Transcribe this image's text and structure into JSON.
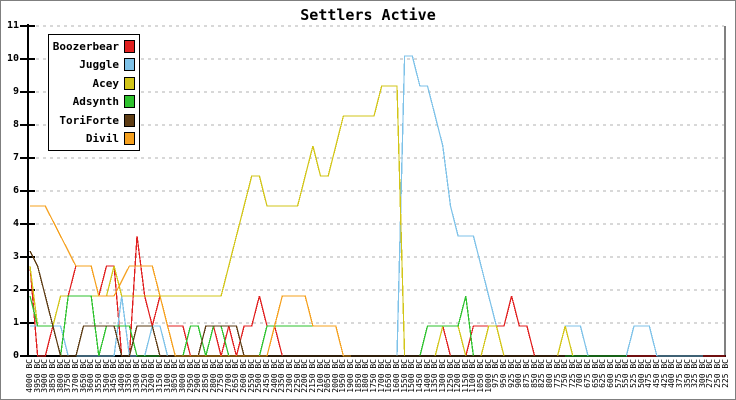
{
  "chart_data": {
    "type": "line",
    "title": "Settlers Active",
    "frame_color": "#7f7f7f",
    "grid": "horizontal dashed",
    "gridline_color": "#b2b2b2",
    "legend_position": "top-left",
    "ylim": [
      0,
      11
    ],
    "y_tick_labels": [
      "11",
      "10",
      "9",
      "8",
      "7",
      "6",
      "4",
      "3",
      "2",
      "1",
      "0"
    ],
    "x_labels": [
      "4000 BC",
      "3950 BC",
      "3900 BC",
      "3850 BC",
      "3800 BC",
      "3750 BC",
      "3700 BC",
      "3650 BC",
      "3600 BC",
      "3550 BC",
      "3500 BC",
      "3450 BC",
      "3400 BC",
      "3350 BC",
      "3300 BC",
      "3250 BC",
      "3200 BC",
      "3150 BC",
      "3100 BC",
      "3050 BC",
      "3000 BC",
      "2950 BC",
      "2900 BC",
      "2850 BC",
      "2800 BC",
      "2750 BC",
      "2700 BC",
      "2650 BC",
      "2600 BC",
      "2550 BC",
      "2500 BC",
      "2450 BC",
      "2400 BC",
      "2350 BC",
      "2300 BC",
      "2250 BC",
      "2200 BC",
      "2150 BC",
      "2100 BC",
      "2050 BC",
      "2000 BC",
      "1950 BC",
      "1900 BC",
      "1850 BC",
      "1800 BC",
      "1750 BC",
      "1700 BC",
      "1650 BC",
      "1600 BC",
      "1550 BC",
      "1500 BC",
      "1450 BC",
      "1400 BC",
      "1350 BC",
      "1300 BC",
      "1250 BC",
      "1200 BC",
      "1150 BC",
      "1100 BC",
      "1050 BC",
      "1000 BC",
      "975 BC",
      "950 BC",
      "925 BC",
      "900 BC",
      "875 BC",
      "850 BC",
      "825 BC",
      "800 BC",
      "775 BC",
      "750 BC",
      "725 BC",
      "700 BC",
      "675 BC",
      "650 BC",
      "625 BC",
      "600 BC",
      "575 BC",
      "550 BC",
      "525 BC",
      "500 BC",
      "475 BC",
      "450 BC",
      "425 BC",
      "400 BC",
      "375 BC",
      "350 BC",
      "325 BC",
      "300 BC",
      "275 BC",
      "250 BC",
      "225 BC"
    ],
    "series": [
      {
        "name": "Boozerbear",
        "color": "#e02020",
        "values": [
          3,
          0,
          0,
          1,
          2,
          2,
          3,
          3,
          3,
          2,
          3,
          3,
          0,
          0,
          4,
          2,
          1,
          2,
          1,
          1,
          1,
          0,
          0,
          0,
          1,
          0,
          1,
          0,
          1,
          1,
          2,
          1,
          1,
          0,
          0,
          0,
          0,
          0,
          0,
          0,
          0,
          0,
          0,
          0,
          0,
          0,
          0,
          0,
          0,
          0,
          0,
          0,
          0,
          0,
          1,
          0,
          0,
          0,
          1,
          1,
          1,
          1,
          1,
          2,
          1,
          1,
          0,
          0,
          0,
          0,
          0,
          0,
          0,
          0,
          0,
          0,
          0,
          0,
          0,
          0,
          0,
          0,
          0,
          0,
          0,
          0,
          0,
          0,
          0,
          0,
          0,
          0
        ]
      },
      {
        "name": "Juggle",
        "color": "#7ec2e8",
        "values": [
          1,
          1,
          1,
          1,
          1,
          0,
          0,
          0,
          0,
          0,
          0,
          0,
          2,
          0,
          0,
          0,
          1,
          1,
          0,
          0,
          0,
          0,
          0,
          0,
          0,
          0,
          0,
          0,
          0,
          0,
          0,
          0,
          0,
          0,
          0,
          0,
          0,
          0,
          0,
          0,
          0,
          0,
          0,
          0,
          0,
          0,
          0,
          0,
          0,
          10,
          10,
          9,
          9,
          8,
          7,
          5,
          4,
          4,
          4,
          3,
          2,
          1,
          0,
          0,
          0,
          0,
          0,
          0,
          0,
          0,
          1,
          1,
          1,
          0,
          0,
          0,
          0,
          0,
          0,
          1,
          1,
          1,
          0,
          0,
          0,
          0,
          0,
          0,
          0
        ]
      },
      {
        "name": "Acey",
        "color": "#d2c518",
        "values": [
          3,
          1,
          1,
          1,
          2,
          2,
          2,
          2,
          2,
          2,
          2,
          3,
          2,
          2,
          2,
          2,
          2,
          2,
          2,
          2,
          2,
          2,
          2,
          2,
          2,
          2,
          3,
          4,
          5,
          6,
          6,
          5,
          5,
          5,
          5,
          5,
          6,
          7,
          6,
          6,
          7,
          8,
          8,
          8,
          8,
          8,
          9,
          9,
          9,
          0,
          0,
          0,
          0,
          0,
          1,
          1,
          1,
          0,
          0,
          0,
          1,
          1,
          0,
          0,
          0,
          0,
          0,
          0,
          0,
          0,
          1,
          0
        ]
      },
      {
        "name": "Adsynth",
        "color": "#2ec22e",
        "values": [
          2,
          1,
          1,
          1,
          0,
          2,
          2,
          2,
          2,
          0,
          1,
          1,
          1,
          1,
          0,
          0,
          0,
          0,
          0,
          0,
          0,
          1,
          1,
          0,
          1,
          1,
          0,
          0,
          0,
          0,
          0,
          1,
          1,
          1,
          1,
          1,
          1,
          1,
          1,
          1,
          1,
          0,
          0,
          0,
          0,
          0,
          0,
          0,
          0,
          0,
          0,
          0,
          1,
          1,
          1,
          1,
          1,
          2,
          0,
          0,
          0,
          0,
          0,
          0,
          0,
          0,
          0,
          0,
          0,
          0,
          0,
          0,
          0,
          0,
          0,
          0,
          0,
          0,
          0
        ]
      },
      {
        "name": "ToriForte",
        "color": "#5e3c14",
        "values": [
          3.5,
          3,
          2,
          1,
          0,
          0,
          0,
          1,
          1,
          1,
          1,
          1,
          0,
          0,
          1,
          1,
          1,
          0,
          0,
          0,
          0,
          0,
          0,
          1,
          1,
          1,
          1,
          1,
          0,
          0,
          0,
          0,
          0,
          0,
          0,
          0,
          0,
          0,
          0,
          0,
          0,
          0,
          0,
          0,
          0,
          0,
          0,
          0,
          0,
          0,
          0,
          0,
          0,
          0,
          0,
          0,
          0,
          0,
          0,
          0,
          0,
          0,
          0,
          0,
          0,
          0,
          0,
          0,
          0,
          0,
          0
        ]
      },
      {
        "name": "Divil",
        "color": "#f5a01e",
        "values": [
          5,
          5,
          5,
          4.5,
          4,
          3.5,
          3,
          3,
          3,
          2,
          2,
          2,
          2.5,
          3,
          3,
          3,
          3,
          2,
          1,
          0,
          0,
          0,
          0,
          0,
          0,
          0,
          0,
          0,
          0,
          0,
          0,
          0,
          1,
          2,
          2,
          2,
          2,
          1,
          1,
          1,
          1,
          0,
          0
        ]
      }
    ]
  }
}
